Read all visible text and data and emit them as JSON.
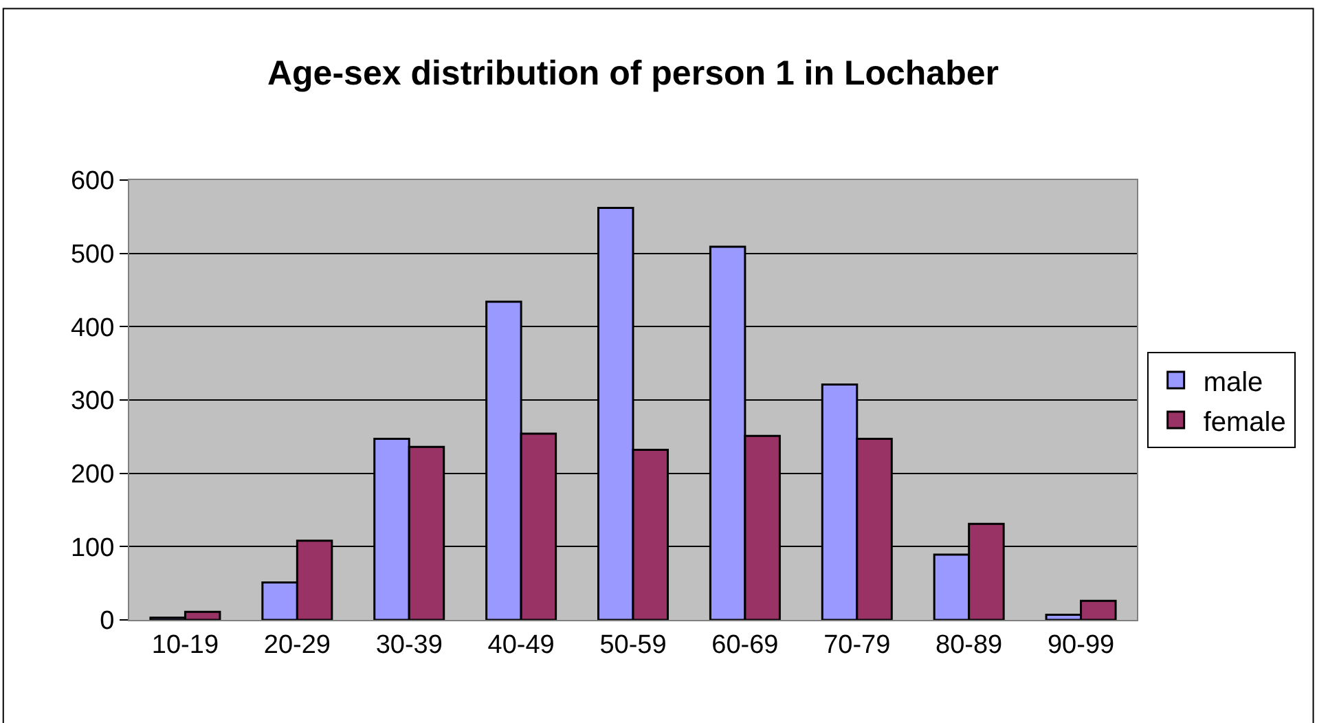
{
  "chart_data": {
    "type": "bar",
    "title": "Age-sex distribution of person 1 in Lochaber",
    "categories": [
      "10-19",
      "20-29",
      "30-39",
      "40-49",
      "50-59",
      "60-69",
      "70-79",
      "80-89",
      "90-99"
    ],
    "series": [
      {
        "name": "male",
        "color": "#9999ff",
        "values": [
          3,
          51,
          247,
          434,
          562,
          509,
          321,
          89,
          7
        ]
      },
      {
        "name": "female",
        "color": "#993366",
        "values": [
          11,
          108,
          236,
          254,
          232,
          251,
          247,
          131,
          26
        ]
      }
    ],
    "ylim": [
      0,
      600
    ],
    "yticks": [
      0,
      100,
      200,
      300,
      400,
      500,
      600
    ],
    "grid": "y",
    "legend": "right"
  }
}
